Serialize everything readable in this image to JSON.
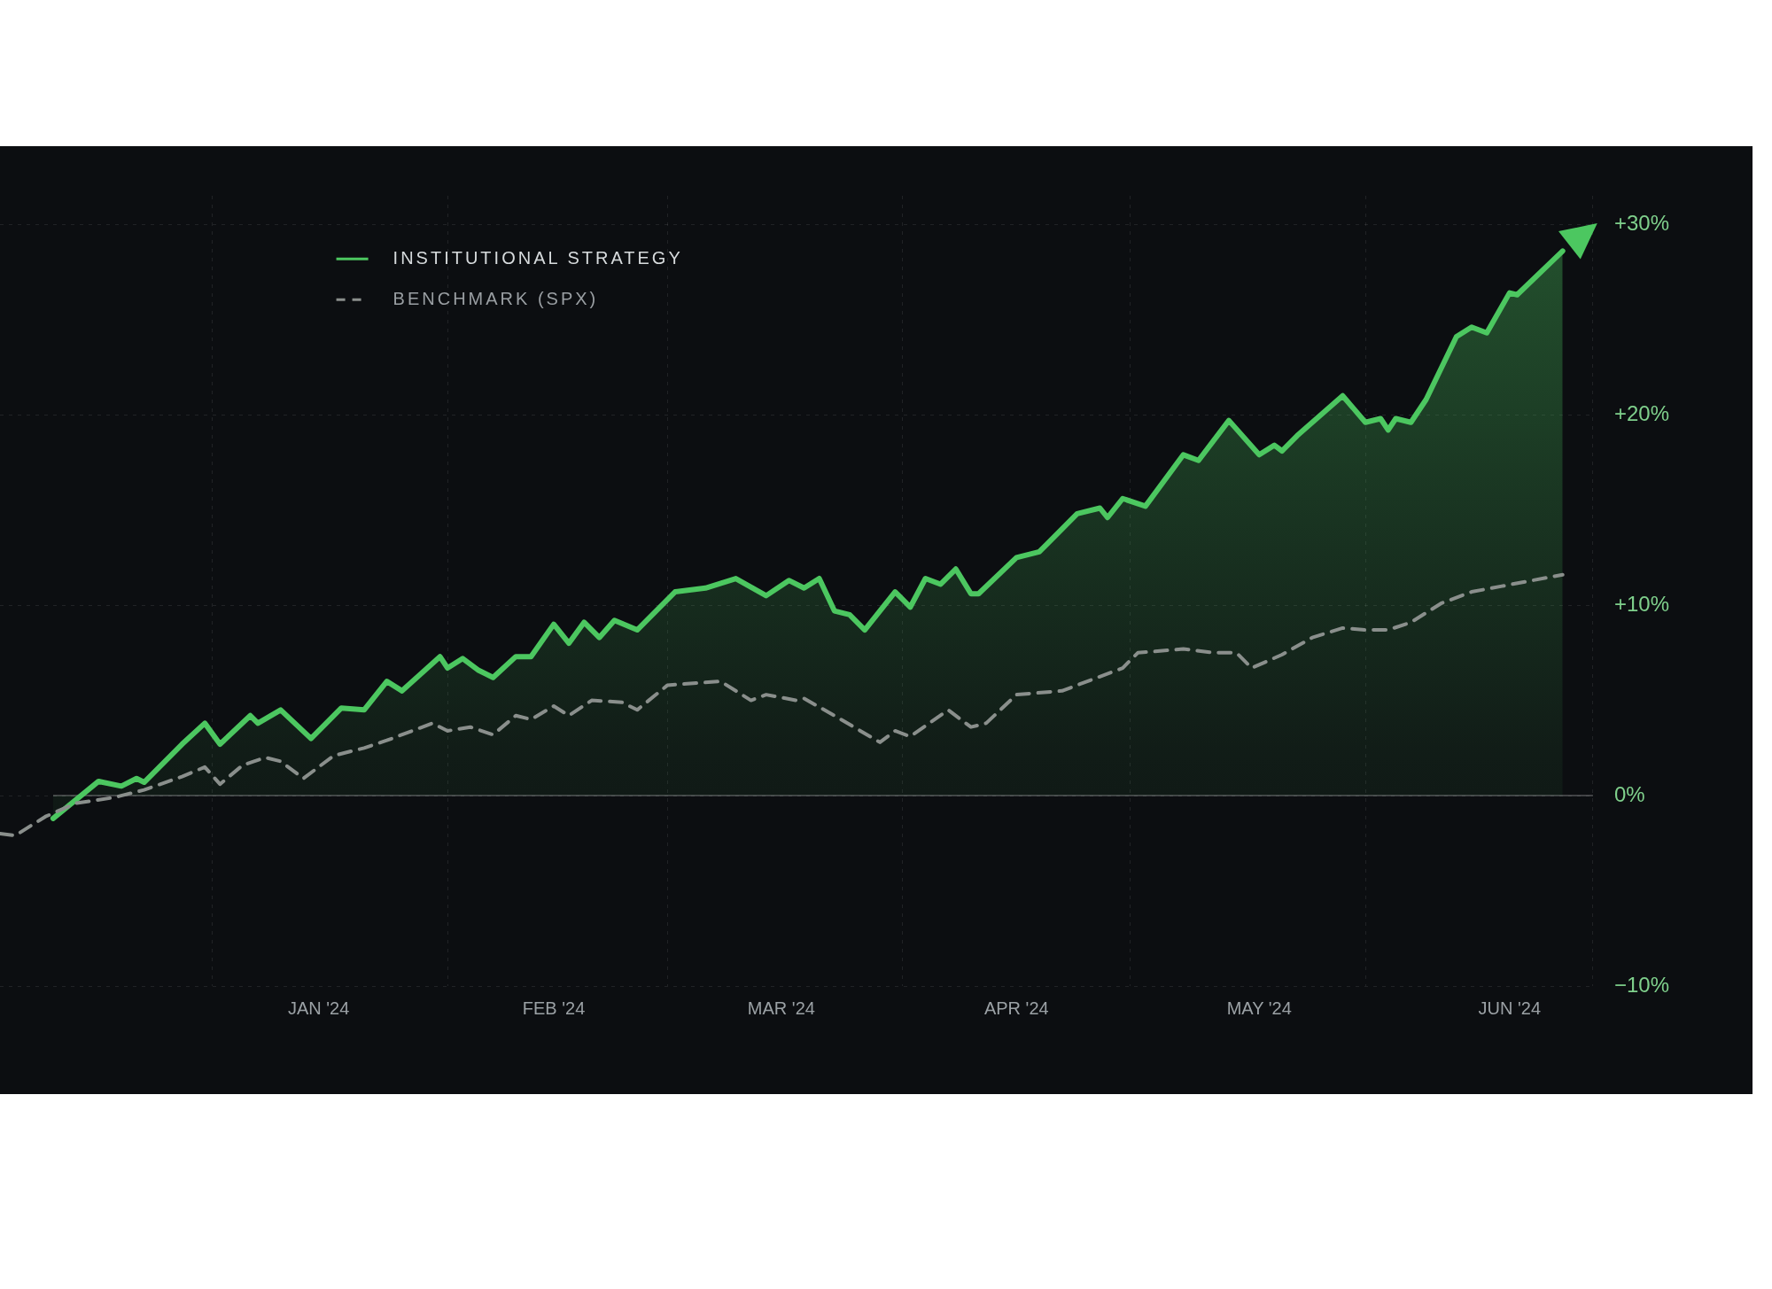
{
  "chart_data": {
    "type": "line",
    "legend": "top left",
    "grid": true,
    "xlim": [
      "2023-12-04",
      "2024-07-01"
    ],
    "xticks": [
      {
        "value": "2024-01-01",
        "label": null
      },
      {
        "value": "2024-01-15",
        "label": "JAN '24"
      },
      {
        "value": "2024-02-01",
        "label": null
      },
      {
        "value": "2024-02-15",
        "label": "FEB '24"
      },
      {
        "value": "2024-03-01",
        "label": null
      },
      {
        "value": "2024-03-16",
        "label": "MAR '24"
      },
      {
        "value": "2024-04-01",
        "label": null
      },
      {
        "value": "2024-04-16",
        "label": "APR '24"
      },
      {
        "value": "2024-05-01",
        "label": null
      },
      {
        "value": "2024-05-18",
        "label": "MAY '24"
      },
      {
        "value": "2024-06-01",
        "label": null
      },
      {
        "value": "2024-06-20",
        "label": "JUN '24"
      },
      {
        "value": "2024-07-01",
        "label": null
      }
    ],
    "ylim": [
      -10,
      31.5
    ],
    "yticks": [
      {
        "value": -10,
        "label": "−10%"
      },
      {
        "value": 0,
        "label": "0%"
      },
      {
        "value": 10,
        "label": "+10%"
      },
      {
        "value": 20,
        "label": "+20%"
      },
      {
        "value": 30,
        "label": "+30%"
      }
    ],
    "ref_lines": [
      {
        "axis": "y",
        "value": 0
      }
    ],
    "series": [
      {
        "name": "INSTITUTIONAL STRATEGY",
        "type": "area",
        "color": "#4cc760",
        "line_style": "solid",
        "x": [
          "2023-12-11",
          "2023-12-17",
          "2023-12-20",
          "2023-12-22",
          "2023-12-23",
          "2023-12-28",
          "2023-12-31",
          "2024-01-02",
          "2024-01-06",
          "2024-01-07",
          "2024-01-10",
          "2024-01-14",
          "2024-01-18",
          "2024-01-21",
          "2024-01-24",
          "2024-01-26",
          "2024-01-31",
          "2024-02-01",
          "2024-02-03",
          "2024-02-05",
          "2024-02-07",
          "2024-02-10",
          "2024-02-12",
          "2024-02-15",
          "2024-02-17",
          "2024-02-19",
          "2024-02-21",
          "2024-02-23",
          "2024-02-26",
          "2024-03-02",
          "2024-03-06",
          "2024-03-10",
          "2024-03-14",
          "2024-03-17",
          "2024-03-19",
          "2024-03-21",
          "2024-03-23",
          "2024-03-25",
          "2024-03-27",
          "2024-03-31",
          "2024-04-02",
          "2024-04-04",
          "2024-04-06",
          "2024-04-08",
          "2024-04-10",
          "2024-04-11",
          "2024-04-16",
          "2024-04-19",
          "2024-04-20",
          "2024-04-24",
          "2024-04-27",
          "2024-04-28",
          "2024-04-30",
          "2024-05-03",
          "2024-05-08",
          "2024-05-10",
          "2024-05-14",
          "2024-05-18",
          "2024-05-20",
          "2024-05-21",
          "2024-05-23",
          "2024-05-29",
          "2024-06-01",
          "2024-06-03",
          "2024-06-04",
          "2024-06-05",
          "2024-06-07",
          "2024-06-09",
          "2024-06-13",
          "2024-06-15",
          "2024-06-17",
          "2024-06-20",
          "2024-06-21",
          "2024-06-27"
        ],
        "values": [
          -1.2,
          0.75,
          0.5,
          0.9,
          0.7,
          2.7,
          3.8,
          2.7,
          4.2,
          3.8,
          4.5,
          3.0,
          4.6,
          4.5,
          6.0,
          5.5,
          7.3,
          6.7,
          7.2,
          6.6,
          6.2,
          7.3,
          7.3,
          9.0,
          8.0,
          9.1,
          8.3,
          9.2,
          8.7,
          10.7,
          10.9,
          11.4,
          10.5,
          11.3,
          10.9,
          11.4,
          9.7,
          9.5,
          8.7,
          10.7,
          9.9,
          11.4,
          11.1,
          11.9,
          10.6,
          10.6,
          12.5,
          12.8,
          13.2,
          14.8,
          15.1,
          14.6,
          15.6,
          15.2,
          17.9,
          17.6,
          19.7,
          17.9,
          18.4,
          18.1,
          18.9,
          21.0,
          19.6,
          19.8,
          19.2,
          19.8,
          19.6,
          20.8,
          24.1,
          24.6,
          24.3,
          26.4,
          26.3,
          28.6
        ]
      },
      {
        "name": "BENCHMARK (SPX)",
        "type": "line",
        "color": "#8a8f8c",
        "line_style": "dashed",
        "x": [
          "2023-12-04",
          "2023-12-06",
          "2023-12-10",
          "2023-12-14",
          "2023-12-19",
          "2023-12-23",
          "2023-12-28",
          "2023-12-31",
          "2024-01-02",
          "2024-01-05",
          "2024-01-08",
          "2024-01-10",
          "2024-01-13",
          "2024-01-17",
          "2024-01-21",
          "2024-01-24",
          "2024-01-30",
          "2024-02-01",
          "2024-02-04",
          "2024-02-07",
          "2024-02-10",
          "2024-02-12",
          "2024-02-15",
          "2024-02-17",
          "2024-02-20",
          "2024-02-24",
          "2024-02-26",
          "2024-03-01",
          "2024-03-08",
          "2024-03-12",
          "2024-03-14",
          "2024-03-18",
          "2024-03-19",
          "2024-03-23",
          "2024-03-29",
          "2024-03-31",
          "2024-04-02",
          "2024-04-07",
          "2024-04-10",
          "2024-04-12",
          "2024-04-16",
          "2024-04-22",
          "2024-04-26",
          "2024-04-30",
          "2024-05-02",
          "2024-05-08",
          "2024-05-12",
          "2024-05-15",
          "2024-05-17",
          "2024-05-21",
          "2024-05-25",
          "2024-05-29",
          "2024-06-01",
          "2024-06-04",
          "2024-06-07",
          "2024-06-11",
          "2024-06-15",
          "2024-06-19",
          "2024-06-27"
        ],
        "values": [
          -2.0,
          -2.1,
          -1.1,
          -0.4,
          -0.1,
          0.3,
          1.0,
          1.5,
          0.6,
          1.6,
          2.0,
          1.8,
          0.9,
          2.1,
          2.5,
          2.9,
          3.8,
          3.4,
          3.6,
          3.2,
          4.2,
          4.0,
          4.7,
          4.2,
          5.0,
          4.9,
          4.5,
          5.8,
          6.0,
          5.0,
          5.3,
          5.0,
          5.1,
          4.2,
          2.8,
          3.4,
          3.1,
          4.5,
          3.6,
          3.8,
          5.3,
          5.5,
          6.1,
          6.7,
          7.5,
          7.7,
          7.5,
          7.5,
          6.7,
          7.4,
          8.3,
          8.8,
          8.7,
          8.7,
          9.1,
          10.1,
          10.7,
          11.0,
          11.6
        ]
      }
    ]
  }
}
